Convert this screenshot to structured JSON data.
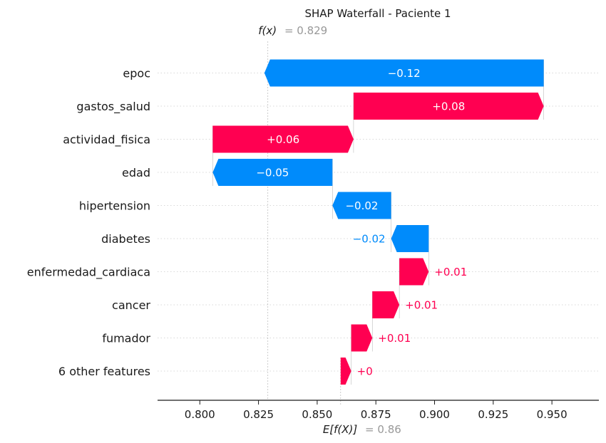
{
  "chart_data": {
    "type": "waterfall",
    "title": "SHAP Waterfall - Paciente 1",
    "fx": {
      "label": "f(x)",
      "value_text": "= 0.829",
      "value": 0.829
    },
    "base": {
      "label": "E[f(X)]",
      "value_text": "= 0.86",
      "value": 0.86
    },
    "xlim": [
      0.782,
      0.97
    ],
    "xticks": [
      0.8,
      0.825,
      0.85,
      0.875,
      0.9,
      0.925,
      0.95
    ],
    "xtick_labels": [
      "0.800",
      "0.825",
      "0.850",
      "0.875",
      "0.900",
      "0.925",
      "0.950"
    ],
    "grid": true,
    "features": [
      {
        "name": "epoc",
        "value": -0.119,
        "label": "−0.12"
      },
      {
        "name": "gastos_salud",
        "value": 0.081,
        "label": "+0.08"
      },
      {
        "name": "actividad_fisica",
        "value": 0.06,
        "label": "+0.06"
      },
      {
        "name": "edad",
        "value": -0.051,
        "label": "−0.05"
      },
      {
        "name": "hipertension",
        "value": -0.025,
        "label": "−0.02"
      },
      {
        "name": "diabetes",
        "value": -0.016,
        "label": "−0.02"
      },
      {
        "name": "enfermedad_cardiaca",
        "value": 0.0125,
        "label": "+0.01"
      },
      {
        "name": "cancer",
        "value": 0.0115,
        "label": "+0.01"
      },
      {
        "name": "fumador",
        "value": 0.009,
        "label": "+0.01"
      },
      {
        "name": "6 other features",
        "value": 0.0045,
        "label": "+0"
      }
    ],
    "colors": {
      "positive": "#ff0051",
      "negative": "#008bfb",
      "axis": "#1a1a1a",
      "grid": "#cccccc",
      "label_gray": "#999999"
    }
  }
}
